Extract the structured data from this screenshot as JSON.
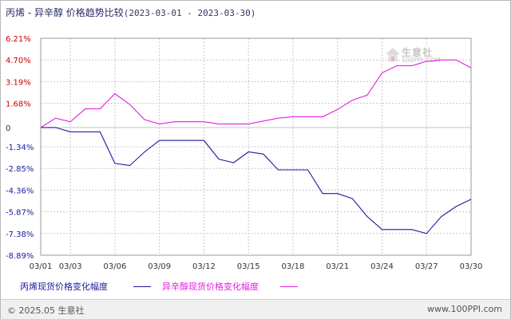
{
  "title": "丙烯 - 异辛醇 价格趋势比较",
  "date_range": "(2023-03-01 - 2023-03-30)",
  "watermark": {
    "name": "生意社",
    "url": "100PPI.COM"
  },
  "footer": {
    "copyright": "© 2025.05 生意社",
    "site": "www.100PPI.com"
  },
  "colors": {
    "series1": "#1a1aa0",
    "series2": "#e21ee2",
    "grid": "#c8c8c8",
    "ylabel_pos": "#cc0000",
    "ylabel_neg": "#1a1aa0",
    "axis": "#333333"
  },
  "chart_data": {
    "type": "line",
    "title": "丙烯 - 异辛醇 价格趋势比较",
    "x": [
      "03/01",
      "03/02",
      "03/03",
      "03/04",
      "03/05",
      "03/06",
      "03/07",
      "03/08",
      "03/09",
      "03/10",
      "03/11",
      "03/12",
      "03/13",
      "03/14",
      "03/15",
      "03/16",
      "03/17",
      "03/18",
      "03/19",
      "03/20",
      "03/21",
      "03/22",
      "03/23",
      "03/24",
      "03/25",
      "03/26",
      "03/27",
      "03/28",
      "03/29",
      "03/30"
    ],
    "x_tick_labels": [
      "03/01",
      "03/03",
      "03/06",
      "03/09",
      "03/12",
      "03/15",
      "03/18",
      "03/21",
      "03/24",
      "03/27",
      "03/30"
    ],
    "y_ticks": [
      6.21,
      4.7,
      3.19,
      1.68,
      0,
      -1.34,
      -2.85,
      -4.36,
      -5.87,
      -7.38,
      -8.89
    ],
    "y_tick_labels": [
      "6.21%",
      "4.70%",
      "3.19%",
      "1.68%",
      "0",
      "-1.34%",
      "-2.85%",
      "-4.36%",
      "-5.87%",
      "-7.38%",
      "-8.89%"
    ],
    "ylim": [
      -8.89,
      6.21
    ],
    "grid": true,
    "legend_position": "bottom",
    "series": [
      {
        "name": "丙烯现货价格变化幅度",
        "values": [
          0.0,
          0.0,
          -0.3,
          -0.3,
          -0.3,
          -2.5,
          -2.65,
          -1.7,
          -0.9,
          -0.9,
          -0.9,
          -0.9,
          -2.2,
          -2.45,
          -1.7,
          -1.85,
          -2.95,
          -2.95,
          -2.95,
          -4.6,
          -4.6,
          -4.95,
          -6.2,
          -7.1,
          -7.1,
          -7.1,
          -7.38,
          -6.2,
          -5.5,
          -5.0
        ]
      },
      {
        "name": "异辛醇现货价格变化幅度",
        "values": [
          0.0,
          0.65,
          0.4,
          1.3,
          1.3,
          2.35,
          1.6,
          0.55,
          0.25,
          0.4,
          0.4,
          0.4,
          0.25,
          0.25,
          0.25,
          0.45,
          0.65,
          0.75,
          0.75,
          0.75,
          1.25,
          1.9,
          2.25,
          3.8,
          4.3,
          4.3,
          4.6,
          4.7,
          4.7,
          4.15
        ]
      }
    ]
  }
}
